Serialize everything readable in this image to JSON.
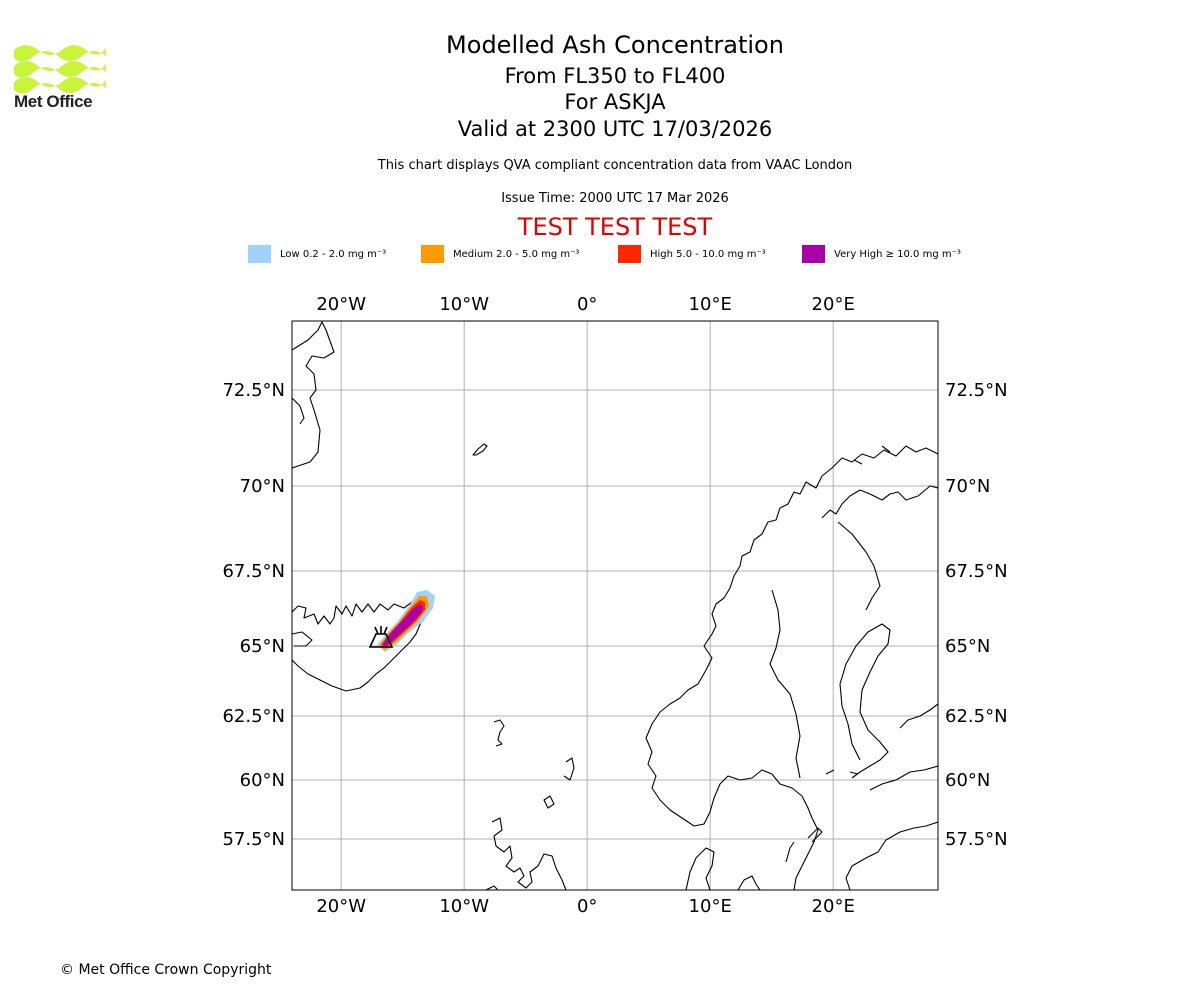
{
  "brand": {
    "name": "Met Office",
    "logo_color": "#c7f53a"
  },
  "header": {
    "title": "Modelled Ash Concentration",
    "flight_levels": "From FL350 to FL400",
    "volcano": "For ASKJA",
    "valid_time": "Valid at 2300 UTC 17/03/2026",
    "description": "This chart displays QVA compliant concentration data from VAAC London",
    "issue_time": "Issue Time: 2000 UTC 17 Mar 2026",
    "test_banner": "TEST TEST TEST",
    "test_color": "#e00000"
  },
  "legend": [
    {
      "label": "Low 0.2 - 2.0 mg m⁻³",
      "color": "#a0d2fa"
    },
    {
      "label": "Medium 2.0 - 5.0 mg m⁻³",
      "color": "#ff9a00"
    },
    {
      "label": "High 5.0 - 10.0 mg m⁻³",
      "color": "#ff2600"
    },
    {
      "label": "Very High  ≥  10.0 mg m⁻³",
      "color": "#aa00aa"
    }
  ],
  "map": {
    "extent": {
      "lon_min": -24,
      "lon_max": 28.5,
      "lat_min": 55.8,
      "lat_max": 74.5
    },
    "lon_ticks": [
      {
        "lon": -20,
        "label": "20°W"
      },
      {
        "lon": -10,
        "label": "10°W"
      },
      {
        "lon": 0,
        "label": "0°"
      },
      {
        "lon": 10,
        "label": "10°E"
      },
      {
        "lon": 20,
        "label": "20°E"
      }
    ],
    "lat_ticks": [
      {
        "lat": 72.5,
        "label": "72.5°N"
      },
      {
        "lat": 70,
        "label": "70°N"
      },
      {
        "lat": 67.5,
        "label": "67.5°N"
      },
      {
        "lat": 65,
        "label": "65°N"
      },
      {
        "lat": 62.5,
        "label": "62.5°N"
      },
      {
        "lat": 60,
        "label": "60°N"
      },
      {
        "lat": 57.5,
        "label": "57.5°N"
      }
    ],
    "volcano": {
      "name": "ASKJA",
      "lon": -16.75,
      "lat": 65.03
    }
  },
  "footer": {
    "copyright": "© Met Office Crown Copyright"
  }
}
